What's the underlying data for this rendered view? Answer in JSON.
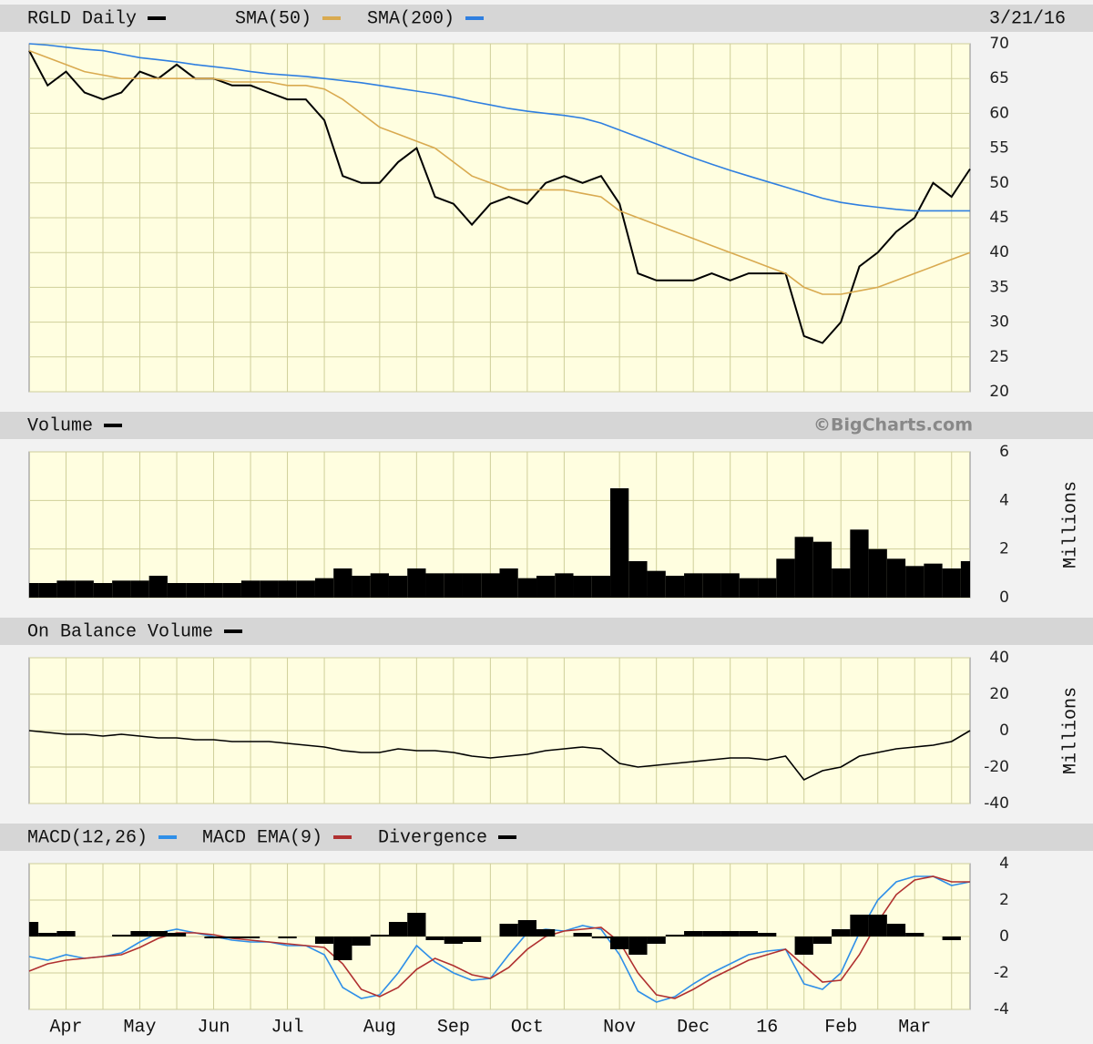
{
  "date": "3/21/16",
  "watermark": "©BigCharts.com",
  "chart_data": [
    {
      "type": "line",
      "ylim": [
        20,
        70
      ],
      "yticks": [
        20,
        25,
        30,
        35,
        40,
        45,
        50,
        55,
        60,
        65,
        70
      ],
      "grid": true,
      "series": [
        {
          "name": "RGLD Daily",
          "color": "#000000",
          "values": [
            69,
            64,
            66,
            63,
            62,
            63,
            66,
            65,
            67,
            65,
            65,
            64,
            64,
            63,
            62,
            62,
            59,
            51,
            50,
            50,
            53,
            55,
            48,
            47,
            44,
            47,
            48,
            47,
            50,
            51,
            50,
            51,
            47,
            37,
            36,
            36,
            36,
            37,
            36,
            37,
            37,
            37,
            28,
            27,
            30,
            38,
            40,
            43,
            45,
            50,
            48,
            52
          ]
        },
        {
          "name": "SMA(50)",
          "color": "#d9aa50",
          "values": [
            69,
            68,
            67,
            66,
            65.5,
            65,
            65,
            65,
            65,
            65,
            65,
            64.5,
            64.5,
            64.5,
            64,
            64,
            63.5,
            62,
            60,
            58,
            57,
            56,
            55,
            53,
            51,
            50,
            49,
            49,
            49,
            49,
            48.5,
            48,
            46,
            45,
            44,
            43,
            42,
            41,
            40,
            39,
            38,
            37,
            35,
            34,
            34,
            34.5,
            35,
            36,
            37,
            38,
            39,
            40
          ]
        },
        {
          "name": "SMA(200)",
          "color": "#2f7fe0",
          "values": [
            70,
            69.8,
            69.5,
            69.2,
            69,
            68.5,
            68,
            67.7,
            67.4,
            67,
            66.7,
            66.4,
            66,
            65.7,
            65.5,
            65.3,
            65,
            64.7,
            64.4,
            64,
            63.6,
            63.2,
            62.8,
            62.3,
            61.7,
            61.2,
            60.7,
            60.3,
            60,
            59.7,
            59.3,
            58.6,
            57.6,
            56.6,
            55.6,
            54.6,
            53.6,
            52.7,
            51.8,
            51,
            50.2,
            49.4,
            48.6,
            47.8,
            47.2,
            46.8,
            46.5,
            46.2,
            46,
            46,
            46,
            46
          ]
        }
      ]
    },
    {
      "type": "bar",
      "ylim": [
        0,
        6
      ],
      "yticks": [
        0,
        2,
        4,
        6
      ],
      "grid": true,
      "y_label": "Millions",
      "series": [
        {
          "name": "Volume",
          "color": "#000000",
          "values": [
            0.6,
            0.6,
            0.7,
            0.7,
            0.6,
            0.7,
            0.7,
            0.9,
            0.6,
            0.6,
            0.6,
            0.6,
            0.7,
            0.7,
            0.7,
            0.7,
            0.8,
            1.2,
            0.9,
            1.0,
            0.9,
            1.2,
            1.0,
            1.0,
            1.0,
            1.0,
            1.2,
            0.8,
            0.9,
            1.0,
            0.9,
            0.9,
            4.5,
            1.5,
            1.1,
            0.9,
            1.0,
            1.0,
            1.0,
            0.8,
            0.8,
            1.6,
            2.5,
            2.3,
            1.2,
            2.8,
            2.0,
            1.6,
            1.3,
            1.4,
            1.2,
            1.5
          ]
        }
      ]
    },
    {
      "type": "line",
      "ylim": [
        -40,
        40
      ],
      "yticks": [
        -40,
        -20,
        0,
        20,
        40
      ],
      "grid": true,
      "y_label": "Millions",
      "series": [
        {
          "name": "On Balance Volume",
          "color": "#000000",
          "values": [
            0,
            -1,
            -2,
            -2,
            -3,
            -2,
            -3,
            -4,
            -4,
            -5,
            -5,
            -6,
            -6,
            -6,
            -7,
            -8,
            -9,
            -11,
            -12,
            -12,
            -10,
            -11,
            -11,
            -12,
            -14,
            -15,
            -14,
            -13,
            -11,
            -10,
            -9,
            -10,
            -18,
            -20,
            -19,
            -18,
            -17,
            -16,
            -15,
            -15,
            -16,
            -14,
            -27,
            -22,
            -20,
            -14,
            -12,
            -10,
            -9,
            -8,
            -6,
            0
          ]
        }
      ]
    },
    {
      "type": "line",
      "ylim": [
        -4,
        4
      ],
      "yticks": [
        -4,
        -2,
        0,
        2,
        4
      ],
      "grid": true,
      "categories": [
        null,
        null,
        "Apr",
        null,
        null,
        null,
        "May",
        null,
        null,
        null,
        "Jun",
        null,
        null,
        null,
        "Jul",
        null,
        null,
        null,
        null,
        "Aug",
        null,
        null,
        null,
        "Sep",
        null,
        null,
        null,
        "Oct",
        null,
        null,
        null,
        null,
        "Nov",
        null,
        null,
        null,
        "Dec",
        null,
        null,
        null,
        "16",
        null,
        null,
        null,
        "Feb",
        null,
        null,
        null,
        "Mar",
        null,
        null,
        null
      ],
      "series": [
        {
          "name": "MACD(12,26)",
          "color": "#2f8fe8",
          "values": [
            -1.1,
            -1.3,
            -1.0,
            -1.2,
            -1.1,
            -0.9,
            -0.3,
            0.2,
            0.4,
            0.2,
            0,
            -0.2,
            -0.3,
            -0.3,
            -0.5,
            -0.5,
            -1,
            -2.8,
            -3.4,
            -3.2,
            -2,
            -0.5,
            -1.4,
            -2.0,
            -2.4,
            -2.3,
            -1.0,
            0.2,
            0.4,
            0.3,
            0.6,
            0.4,
            -1.0,
            -3.0,
            -3.6,
            -3.3,
            -2.6,
            -2.0,
            -1.5,
            -1.0,
            -0.8,
            -0.7,
            -2.6,
            -2.9,
            -2.0,
            0.2,
            2.0,
            3.0,
            3.3,
            3.3,
            2.8,
            3.0
          ]
        },
        {
          "name": "MACD EMA(9)",
          "color": "#b03030",
          "values": [
            -1.9,
            -1.5,
            -1.3,
            -1.2,
            -1.1,
            -1.0,
            -0.6,
            -0.1,
            0.2,
            0.2,
            0.1,
            -0.1,
            -0.2,
            -0.3,
            -0.4,
            -0.5,
            -0.6,
            -1.5,
            -2.9,
            -3.3,
            -2.8,
            -1.8,
            -1.2,
            -1.6,
            -2.1,
            -2.3,
            -1.7,
            -0.7,
            0,
            0.3,
            0.4,
            0.5,
            -0.3,
            -2.0,
            -3.2,
            -3.4,
            -2.9,
            -2.3,
            -1.8,
            -1.3,
            -1.0,
            -0.7,
            -1.6,
            -2.5,
            -2.4,
            -1.0,
            0.8,
            2.3,
            3.1,
            3.3,
            3.0,
            3.0
          ]
        },
        {
          "name": "Divergence",
          "color": "#000000",
          "style": "bar",
          "values": [
            0.8,
            0.2,
            0.3,
            0,
            0,
            0.1,
            0.3,
            0.3,
            0.2,
            0,
            -0.1,
            -0.1,
            -0.1,
            0,
            -0.1,
            0,
            -0.4,
            -1.3,
            -0.5,
            0.1,
            0.8,
            1.3,
            -0.2,
            -0.4,
            -0.3,
            0,
            0.7,
            0.9,
            0.4,
            0,
            0.2,
            -0.1,
            -0.7,
            -1.0,
            -0.4,
            0.1,
            0.3,
            0.3,
            0.3,
            0.3,
            0.2,
            0,
            -1.0,
            -0.4,
            0.4,
            1.2,
            1.2,
            0.7,
            0.2,
            0,
            -0.2,
            0
          ]
        }
      ]
    }
  ]
}
